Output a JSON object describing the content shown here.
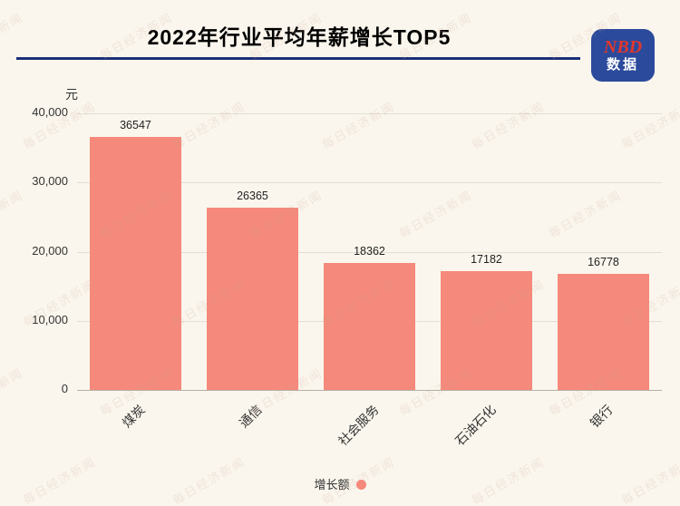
{
  "header": {
    "title": "2022年行业平均年薪增长TOP5",
    "logo": {
      "top": "NBD",
      "bottom": "数据"
    }
  },
  "watermark": {
    "text": "每日经济新闻"
  },
  "chart_data": {
    "type": "bar",
    "title": "2022年行业平均年薪增长TOP5",
    "categories": [
      "煤炭",
      "通信",
      "社会服务",
      "石油石化",
      "银行"
    ],
    "values": [
      36547,
      26365,
      18362,
      17182,
      16778
    ],
    "xlabel": "",
    "ylabel": "元",
    "ylim": [
      0,
      40000
    ],
    "yticks": [
      {
        "value": 0,
        "label": "0"
      },
      {
        "value": 10000,
        "label": "10,000"
      },
      {
        "value": 20000,
        "label": "20,000"
      },
      {
        "value": 30000,
        "label": "30,000"
      },
      {
        "value": 40000,
        "label": "40,000"
      }
    ],
    "grid": true,
    "bar_color": "#f5897b",
    "legend_position": "bottom",
    "legend": [
      {
        "label": "增长额",
        "color": "#f5897b"
      }
    ]
  },
  "colors": {
    "background": "#faf6ed",
    "accent_line": "#1b2f77",
    "logo_bg": "#2b4a9c",
    "logo_text": "#e2372c",
    "bar": "#f5897b"
  }
}
